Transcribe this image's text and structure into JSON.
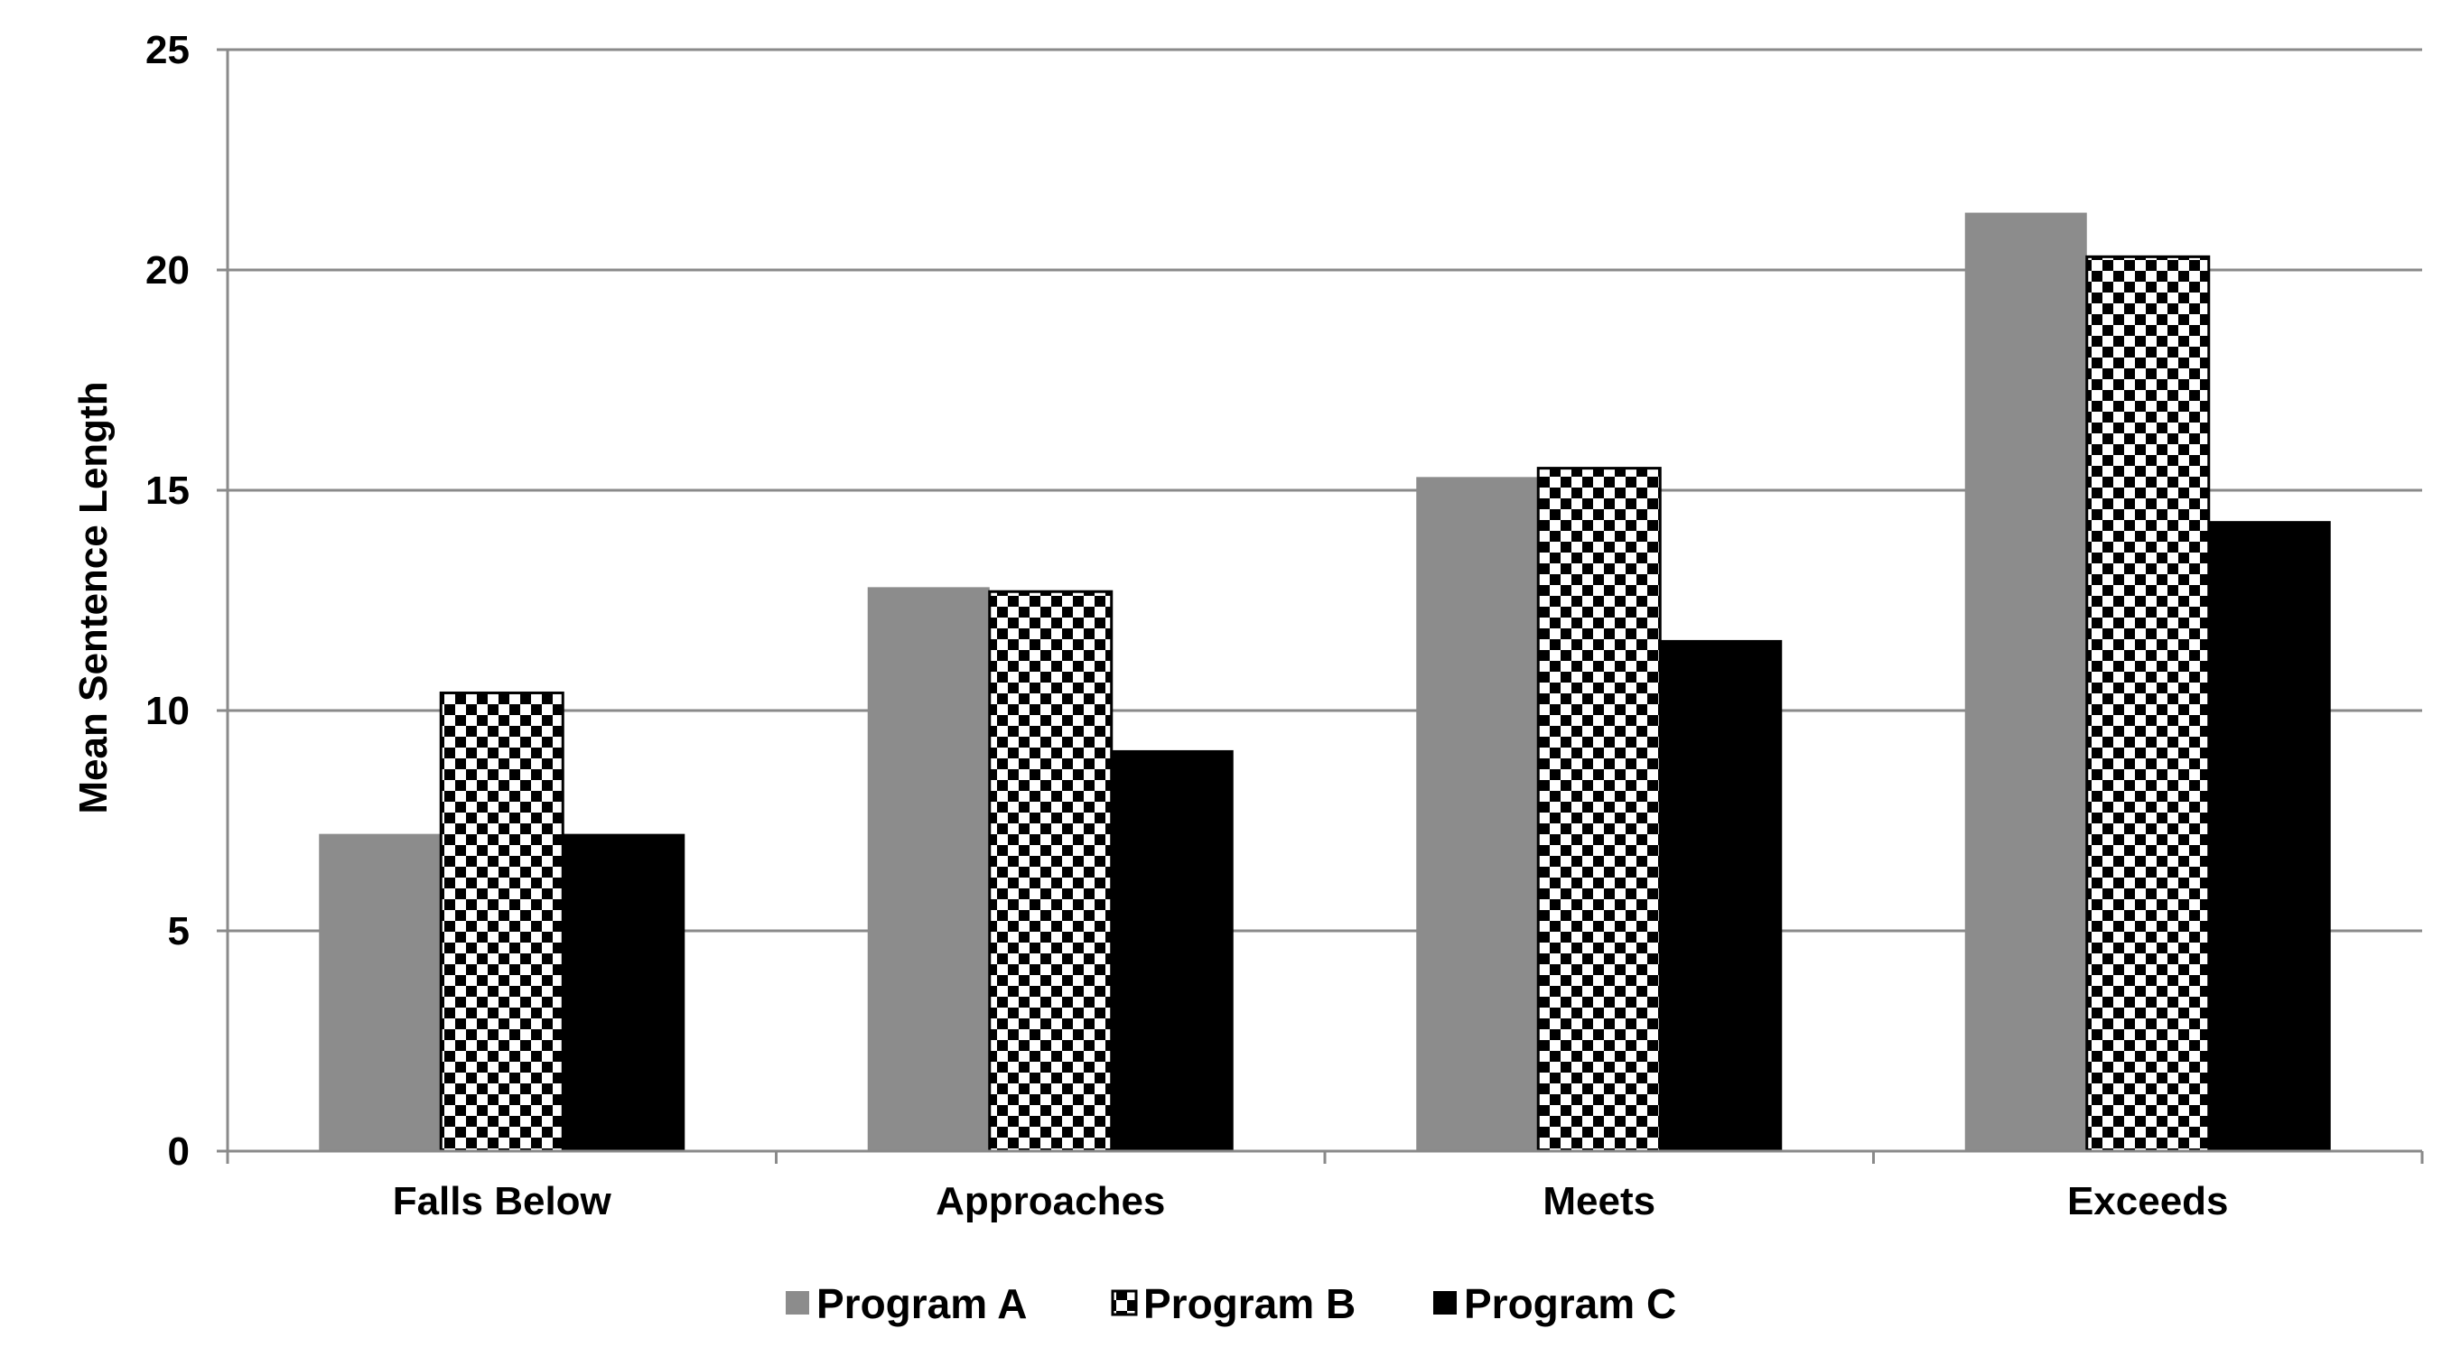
{
  "chart_data": {
    "type": "bar",
    "title": "",
    "xlabel": "",
    "ylabel": "Mean Sentence Length",
    "ylim": [
      0,
      25
    ],
    "yticks": [
      "0",
      "5",
      "10",
      "15",
      "20",
      "25"
    ],
    "grid": true,
    "legend_position": "bottom",
    "categories": [
      "Falls Below",
      "Approaches",
      "Meets",
      "Exceeds"
    ],
    "series": [
      {
        "name": "Program A",
        "values": [
          7.2,
          12.8,
          15.3,
          21.3
        ],
        "color": "#8c8c8c",
        "pattern": "solid"
      },
      {
        "name": "Program B",
        "values": [
          10.4,
          12.7,
          15.5,
          20.3
        ],
        "color": "#000000",
        "pattern": "checkerboard"
      },
      {
        "name": "Program C",
        "values": [
          7.2,
          9.1,
          11.6,
          14.3
        ],
        "color": "#000000",
        "pattern": "solid"
      }
    ]
  }
}
